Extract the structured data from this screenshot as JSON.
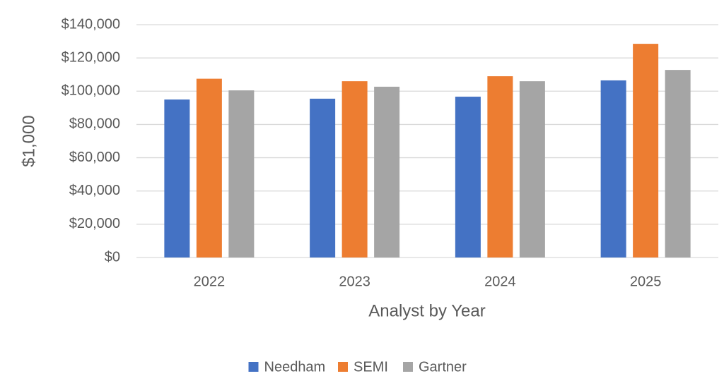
{
  "chart_data": {
    "type": "bar",
    "categories": [
      "2022",
      "2023",
      "2024",
      "2025"
    ],
    "series": [
      {
        "name": "Needham",
        "color": "#4472c4",
        "values": [
          95000,
          95500,
          96700,
          106500
        ]
      },
      {
        "name": "SEMI",
        "color": "#ed7d31",
        "values": [
          107500,
          106000,
          109000,
          128500
        ]
      },
      {
        "name": "Gartner",
        "color": "#a5a5a5",
        "values": [
          100500,
          102700,
          106000,
          112800
        ]
      }
    ],
    "ylim": [
      0,
      140000
    ],
    "yticks": [
      {
        "value": 0,
        "label": "$0"
      },
      {
        "value": 20000,
        "label": "$20,000"
      },
      {
        "value": 40000,
        "label": "$40,000"
      },
      {
        "value": 60000,
        "label": "$60,000"
      },
      {
        "value": 80000,
        "label": "$80,000"
      },
      {
        "value": 100000,
        "label": "$100,000"
      },
      {
        "value": 120000,
        "label": "$120,000"
      },
      {
        "value": 140000,
        "label": "$140,000"
      }
    ],
    "y_label": "$1,000",
    "x_label": "Analyst by Year",
    "grid": true,
    "legend": "bottom"
  }
}
